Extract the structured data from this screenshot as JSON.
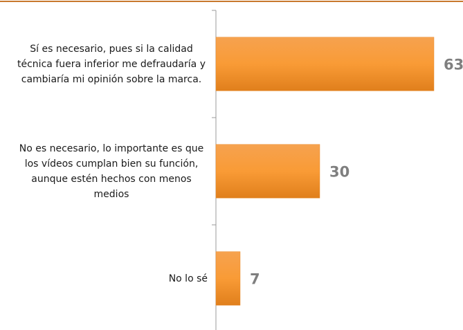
{
  "chart_data": {
    "type": "bar",
    "orientation": "horizontal",
    "categories": [
      "Sí es necesario, pues si la calidad técnica fuera inferior me defraudaría y cambiaría mi opinión sobre la marca.",
      "No es necesario, lo importante es que los vídeos cumplan bien su función, aunque estén hechos con menos medios",
      "No lo sé"
    ],
    "values": [
      63,
      30,
      7
    ],
    "color": "#f79a3c",
    "xlim": [
      0,
      70
    ]
  }
}
